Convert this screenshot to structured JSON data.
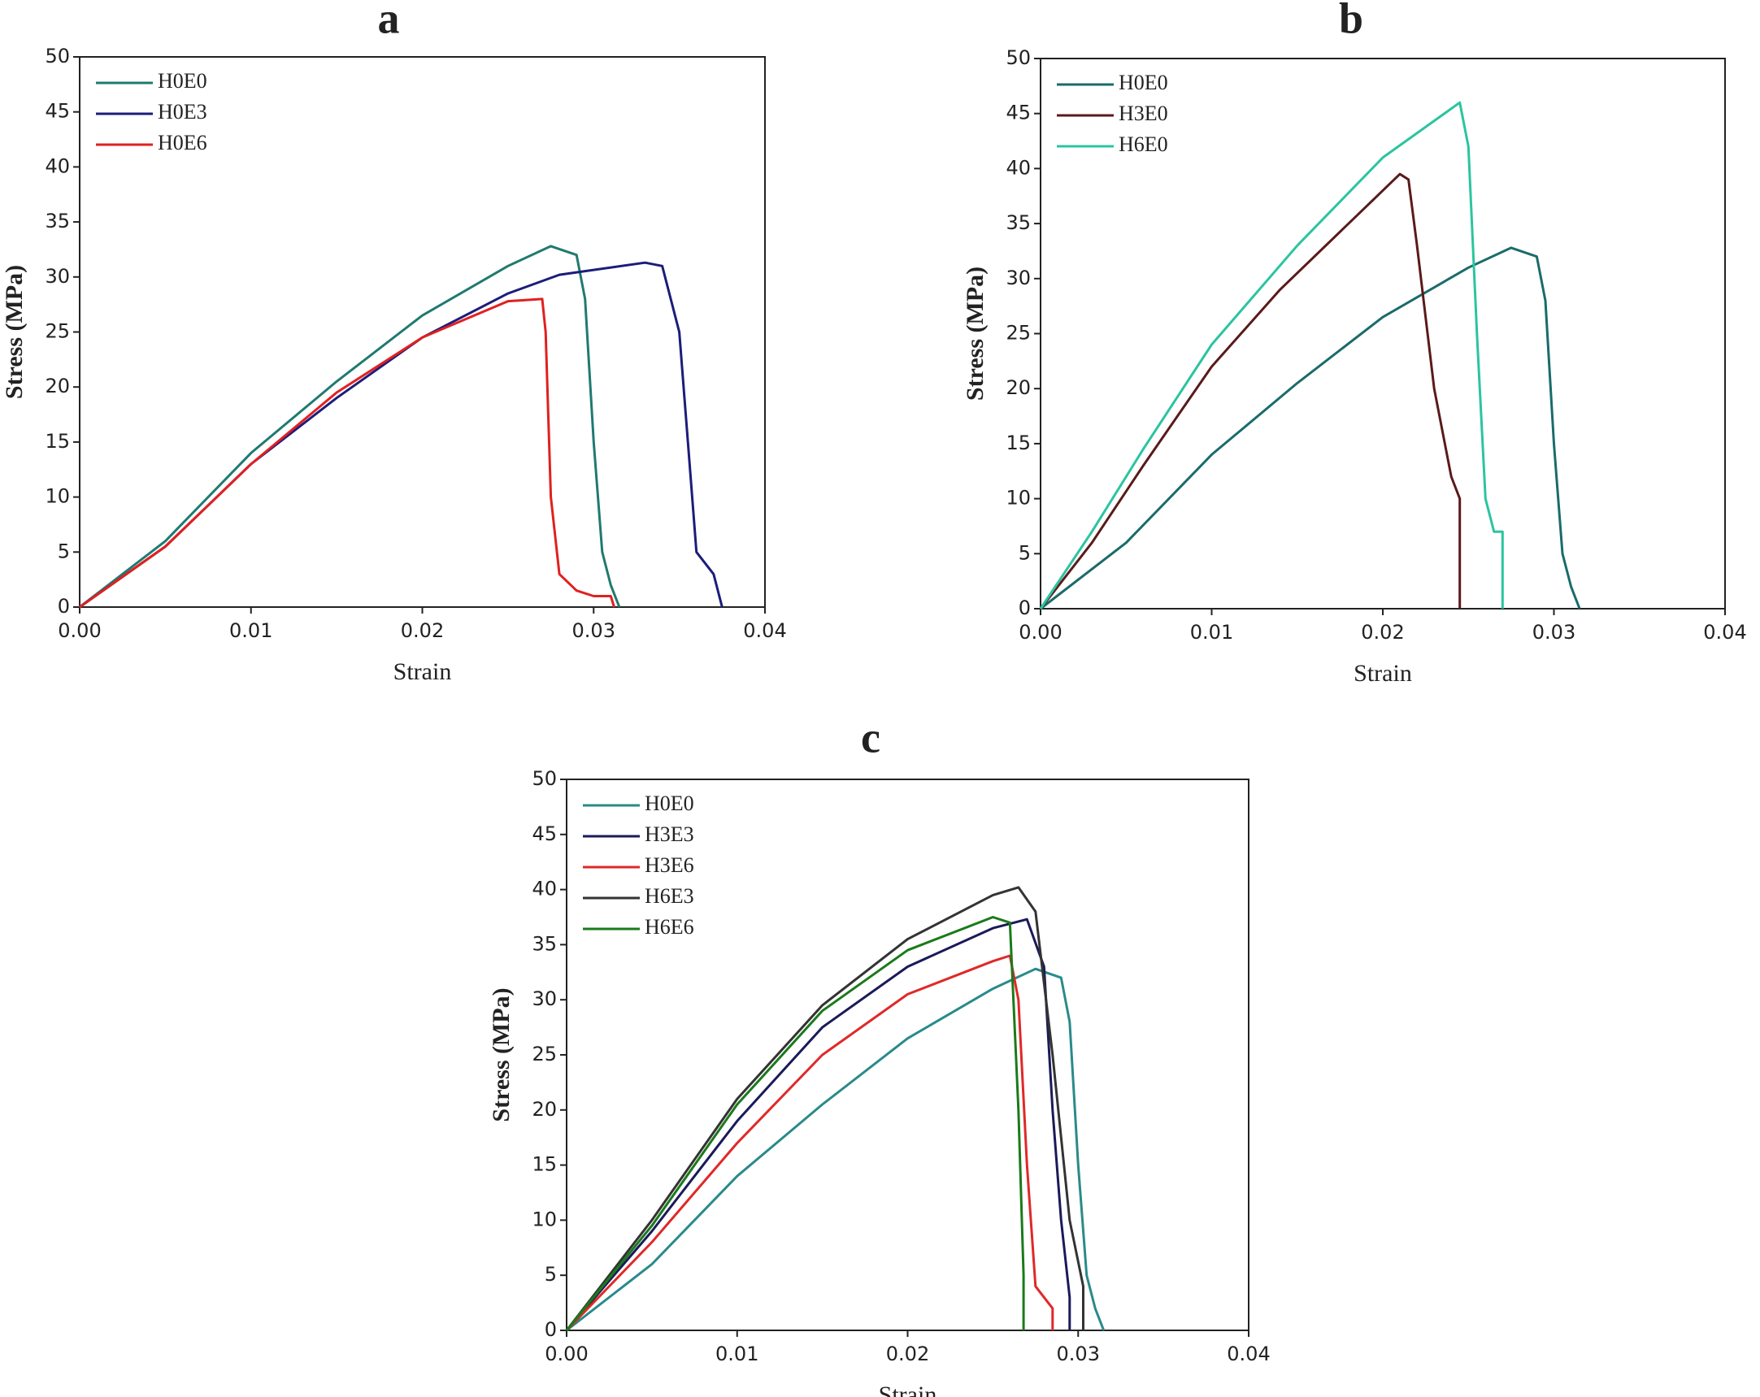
{
  "chart_data": [
    {
      "type": "line",
      "title": "a",
      "x_label": "Strain",
      "y_label": "Stress (MPa)",
      "xlim": [
        0,
        0.04
      ],
      "ylim": [
        0,
        50
      ],
      "xticks": [
        {
          "value": 0,
          "label": "0.00"
        },
        {
          "value": 0.01,
          "label": "0.01"
        },
        {
          "value": 0.02,
          "label": "0.02"
        },
        {
          "value": 0.03,
          "label": "0.03"
        },
        {
          "value": 0.04,
          "label": "0.04"
        }
      ],
      "yticks": [
        0,
        5,
        10,
        15,
        20,
        25,
        30,
        35,
        40,
        45,
        50
      ],
      "grid": false,
      "legend": "upper left",
      "series": [
        {
          "name": "H0E0",
          "color": "#1f7a70",
          "x": [
            0,
            0.005,
            0.01,
            0.015,
            0.02,
            0.025,
            0.0275,
            0.029,
            0.0295,
            0.03,
            0.0305,
            0.031,
            0.0315
          ],
          "values": [
            0,
            6,
            14,
            20.5,
            26.5,
            31,
            32.8,
            32,
            28,
            15,
            5,
            2,
            0
          ]
        },
        {
          "name": "H0E3",
          "color": "#1c1c7a",
          "x": [
            0,
            0.005,
            0.01,
            0.015,
            0.02,
            0.025,
            0.028,
            0.033,
            0.034,
            0.035,
            0.0355,
            0.036,
            0.037,
            0.0375
          ],
          "values": [
            0,
            5.5,
            13,
            19,
            24.5,
            28.5,
            30.2,
            31.3,
            31,
            25,
            15,
            5,
            3,
            0
          ]
        },
        {
          "name": "H0E6",
          "color": "#e02020",
          "x": [
            0,
            0.005,
            0.01,
            0.015,
            0.02,
            0.025,
            0.027,
            0.0272,
            0.0275,
            0.028,
            0.029,
            0.03,
            0.031,
            0.0312
          ],
          "values": [
            0,
            5.5,
            13,
            19.5,
            24.5,
            27.8,
            28,
            25,
            10,
            3,
            1.5,
            1,
            1,
            0
          ]
        }
      ]
    },
    {
      "type": "line",
      "title": "b",
      "x_label": "Strain",
      "y_label": "Stress (MPa)",
      "xlim": [
        0,
        0.04
      ],
      "ylim": [
        0,
        50
      ],
      "xticks": [
        {
          "value": 0,
          "label": "0.00"
        },
        {
          "value": 0.01,
          "label": "0.01"
        },
        {
          "value": 0.02,
          "label": "0.02"
        },
        {
          "value": 0.03,
          "label": "0.03"
        },
        {
          "value": 0.04,
          "label": "0.04"
        }
      ],
      "yticks": [
        0,
        5,
        10,
        15,
        20,
        25,
        30,
        35,
        40,
        45,
        50
      ],
      "grid": false,
      "legend": "upper left",
      "series": [
        {
          "name": "H0E0",
          "color": "#1a6b6b",
          "x": [
            0,
            0.005,
            0.01,
            0.015,
            0.02,
            0.025,
            0.0275,
            0.029,
            0.0295,
            0.03,
            0.0305,
            0.031,
            0.0315
          ],
          "values": [
            0,
            6,
            14,
            20.5,
            26.5,
            31,
            32.8,
            32,
            28,
            15,
            5,
            2,
            0
          ]
        },
        {
          "name": "H3E0",
          "color": "#5a1a1a",
          "x": [
            0,
            0.003,
            0.006,
            0.01,
            0.014,
            0.018,
            0.021,
            0.0215,
            0.022,
            0.023,
            0.024,
            0.0245,
            0.0245
          ],
          "values": [
            0,
            6,
            13,
            22,
            29,
            35,
            39.5,
            39,
            33,
            20,
            12,
            10,
            0
          ]
        },
        {
          "name": "H6E0",
          "color": "#2bc4a0",
          "x": [
            0,
            0.003,
            0.006,
            0.01,
            0.015,
            0.02,
            0.0245,
            0.025,
            0.0255,
            0.026,
            0.0265,
            0.027,
            0.027
          ],
          "values": [
            0,
            7,
            14.5,
            24,
            33,
            41,
            46,
            42,
            25,
            10,
            7,
            7,
            0
          ]
        }
      ]
    },
    {
      "type": "line",
      "title": "c",
      "x_label": "Strain",
      "y_label": "Stress (MPa)",
      "xlim": [
        0,
        0.04
      ],
      "ylim": [
        0,
        50
      ],
      "xticks": [
        {
          "value": 0,
          "label": "0.00"
        },
        {
          "value": 0.01,
          "label": "0.01"
        },
        {
          "value": 0.02,
          "label": "0.02"
        },
        {
          "value": 0.03,
          "label": "0.03"
        },
        {
          "value": 0.04,
          "label": "0.04"
        }
      ],
      "yticks": [
        0,
        5,
        10,
        15,
        20,
        25,
        30,
        35,
        40,
        45,
        50
      ],
      "grid": false,
      "legend": "upper left",
      "series": [
        {
          "name": "H0E0",
          "color": "#2a8a8a",
          "x": [
            0,
            0.005,
            0.01,
            0.015,
            0.02,
            0.025,
            0.0275,
            0.029,
            0.0295,
            0.03,
            0.0305,
            0.031,
            0.0315
          ],
          "values": [
            0,
            6,
            14,
            20.5,
            26.5,
            31,
            32.8,
            32,
            28,
            15,
            5,
            2,
            0
          ]
        },
        {
          "name": "H3E3",
          "color": "#1a1a5a",
          "x": [
            0,
            0.005,
            0.01,
            0.015,
            0.02,
            0.025,
            0.027,
            0.028,
            0.0285,
            0.029,
            0.0295,
            0.0295
          ],
          "values": [
            0,
            9,
            19,
            27.5,
            33,
            36.5,
            37.3,
            33,
            20,
            10,
            3,
            0
          ]
        },
        {
          "name": "H3E6",
          "color": "#e02828",
          "x": [
            0,
            0.005,
            0.01,
            0.015,
            0.02,
            0.025,
            0.026,
            0.0265,
            0.027,
            0.0275,
            0.0285,
            0.0285
          ],
          "values": [
            0,
            8,
            17,
            25,
            30.5,
            33.5,
            34,
            30,
            15,
            4,
            2,
            0
          ]
        },
        {
          "name": "H6E3",
          "color": "#333333",
          "x": [
            0,
            0.005,
            0.01,
            0.015,
            0.02,
            0.025,
            0.0265,
            0.0275,
            0.0285,
            0.0295,
            0.0303,
            0.0303
          ],
          "values": [
            0,
            10,
            21,
            29.5,
            35.5,
            39.5,
            40.2,
            38,
            25,
            10,
            4,
            0
          ]
        },
        {
          "name": "H6E6",
          "color": "#1a7a1a",
          "x": [
            0,
            0.005,
            0.01,
            0.015,
            0.02,
            0.025,
            0.026,
            0.0265,
            0.0268,
            0.0268
          ],
          "values": [
            0,
            9.5,
            20.5,
            29,
            34.5,
            37.5,
            37,
            20,
            5,
            0
          ]
        }
      ]
    }
  ]
}
